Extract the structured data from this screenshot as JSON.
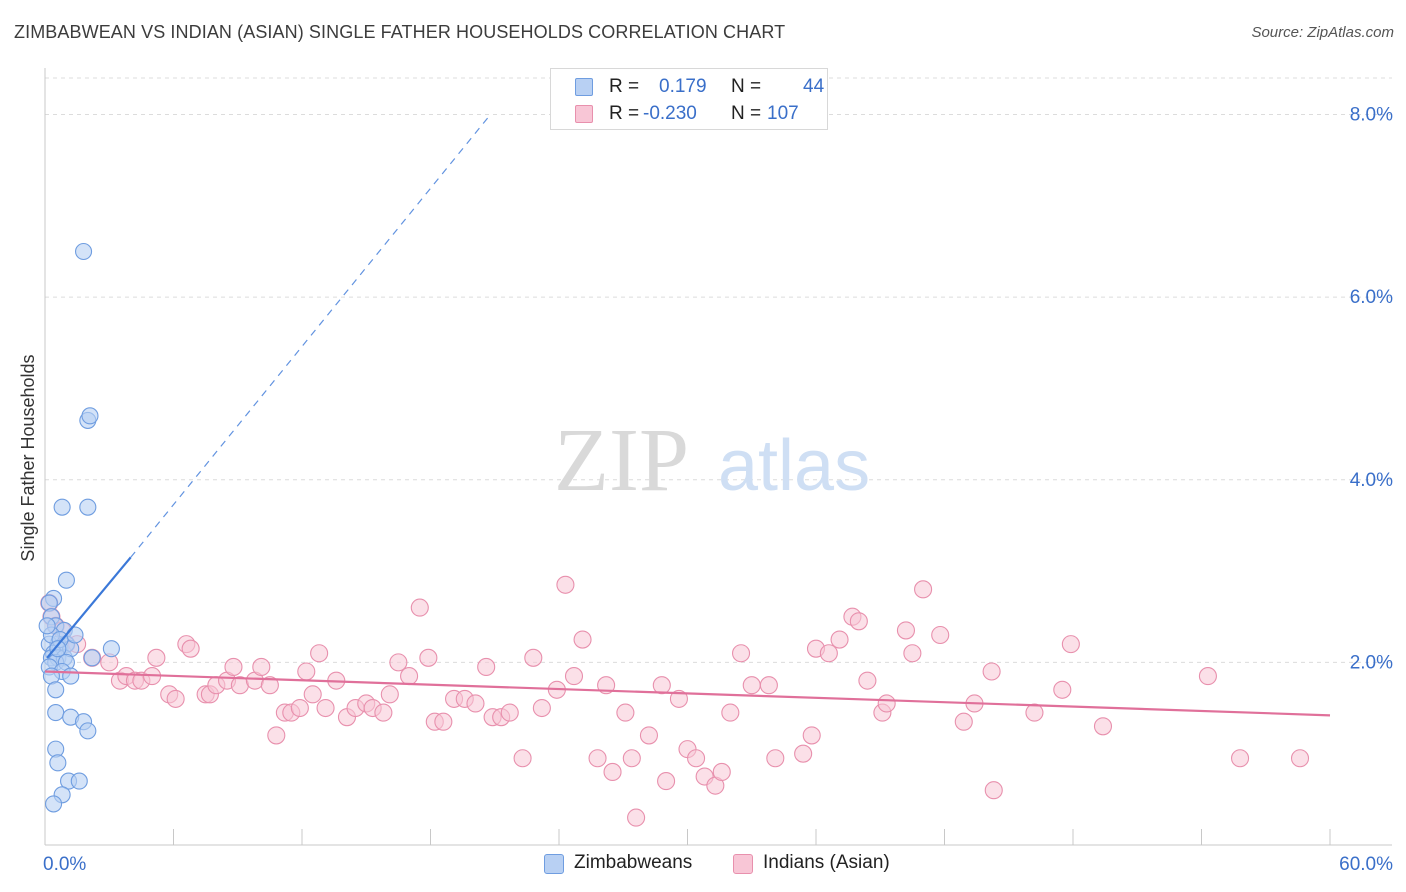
{
  "title": "ZIMBABWEAN VS INDIAN (ASIAN) SINGLE FATHER HOUSEHOLDS CORRELATION CHART",
  "source": "Source: ZipAtlas.com",
  "watermark": {
    "zip": "ZIP",
    "atlas": "atlas"
  },
  "legend": {
    "rows": [
      {
        "r_label": "R =",
        "r_value": "0.179",
        "n_label": "N =",
        "n_value": "44",
        "color": "#6f9de0",
        "fill": "#b8d0f3"
      },
      {
        "r_label": "R =",
        "r_value": "-0.230",
        "n_label": "N =",
        "n_value": "107",
        "color": "#e890ad",
        "fill": "#f8c6d6"
      }
    ]
  },
  "bottom_legend": [
    {
      "label": "Zimbabweans",
      "color": "#6f9de0",
      "fill": "#b8d0f3"
    },
    {
      "label": "Indians (Asian)",
      "color": "#e890ad",
      "fill": "#f8c6d6"
    }
  ],
  "chart_data": {
    "type": "scatter",
    "title": "ZIMBABWEAN VS INDIAN (ASIAN) SINGLE FATHER HOUSEHOLDS CORRELATION CHART",
    "xlabel": "",
    "ylabel": "Single Father Households",
    "xlim": [
      0,
      60
    ],
    "ylim": [
      0,
      8.4
    ],
    "x_tick_labels": [
      "0.0%",
      "60.0%"
    ],
    "y_ticks": [
      2.0,
      4.0,
      6.0,
      8.0
    ],
    "y_tick_labels": [
      "2.0%",
      "4.0%",
      "6.0%",
      "8.0%"
    ],
    "grid": true,
    "colors": {
      "blue": "#3b78d8",
      "pink": "#e0709a",
      "axis_text": "#3a6fc9"
    },
    "series": [
      {
        "name": "Zimbabweans",
        "color": "#6f9de0",
        "fill": "#b8d0f3",
        "trend": {
          "x_start": 0.1,
          "y_start": 2.05,
          "x_solid_end": 4.0,
          "y_solid_end": 3.15,
          "x_dash_end": 20.8,
          "y_dash_end": 8.0
        },
        "points": [
          [
            1.8,
            6.5
          ],
          [
            2.0,
            4.65
          ],
          [
            2.1,
            4.7
          ],
          [
            0.8,
            3.7
          ],
          [
            2.0,
            3.7
          ],
          [
            1.0,
            2.9
          ],
          [
            0.4,
            2.7
          ],
          [
            0.2,
            2.65
          ],
          [
            0.3,
            2.5
          ],
          [
            0.5,
            2.4
          ],
          [
            0.9,
            2.35
          ],
          [
            0.6,
            2.2
          ],
          [
            0.2,
            2.2
          ],
          [
            0.7,
            2.15
          ],
          [
            1.0,
            2.2
          ],
          [
            0.4,
            2.1
          ],
          [
            0.3,
            2.05
          ],
          [
            0.6,
            2.05
          ],
          [
            0.9,
            2.05
          ],
          [
            1.2,
            2.15
          ],
          [
            0.5,
            2.0
          ],
          [
            1.0,
            2.0
          ],
          [
            2.2,
            2.05
          ],
          [
            3.1,
            2.15
          ],
          [
            0.2,
            1.95
          ],
          [
            0.8,
            1.9
          ],
          [
            0.3,
            1.85
          ],
          [
            1.2,
            1.85
          ],
          [
            0.5,
            1.7
          ],
          [
            0.5,
            1.45
          ],
          [
            1.2,
            1.4
          ],
          [
            1.8,
            1.35
          ],
          [
            2.0,
            1.25
          ],
          [
            0.5,
            1.05
          ],
          [
            0.6,
            0.9
          ],
          [
            1.1,
            0.7
          ],
          [
            1.6,
            0.7
          ],
          [
            0.8,
            0.55
          ],
          [
            0.4,
            0.45
          ],
          [
            0.3,
            2.3
          ],
          [
            0.7,
            2.25
          ],
          [
            0.1,
            2.4
          ],
          [
            1.4,
            2.3
          ],
          [
            0.6,
            2.15
          ]
        ]
      },
      {
        "name": "Indians (Asian)",
        "color": "#e890ad",
        "fill": "#f8c6d6",
        "trend": {
          "x_start": 0.0,
          "y_start": 1.9,
          "x_end": 60.0,
          "y_end": 1.42
        },
        "points": [
          [
            0.2,
            2.65
          ],
          [
            0.3,
            2.5
          ],
          [
            0.5,
            2.4
          ],
          [
            0.8,
            2.35
          ],
          [
            1.0,
            2.2
          ],
          [
            1.5,
            2.2
          ],
          [
            2.2,
            2.05
          ],
          [
            3.0,
            2.0
          ],
          [
            3.5,
            1.8
          ],
          [
            3.8,
            1.85
          ],
          [
            4.2,
            1.8
          ],
          [
            4.5,
            1.8
          ],
          [
            5.0,
            1.85
          ],
          [
            5.2,
            2.05
          ],
          [
            5.8,
            1.65
          ],
          [
            6.1,
            1.6
          ],
          [
            6.6,
            2.2
          ],
          [
            6.8,
            2.15
          ],
          [
            7.5,
            1.65
          ],
          [
            7.7,
            1.65
          ],
          [
            8.0,
            1.75
          ],
          [
            8.5,
            1.8
          ],
          [
            8.8,
            1.95
          ],
          [
            9.1,
            1.75
          ],
          [
            9.8,
            1.8
          ],
          [
            10.1,
            1.95
          ],
          [
            10.5,
            1.75
          ],
          [
            10.8,
            1.2
          ],
          [
            11.2,
            1.45
          ],
          [
            11.5,
            1.45
          ],
          [
            11.9,
            1.5
          ],
          [
            12.2,
            1.9
          ],
          [
            12.5,
            1.65
          ],
          [
            12.8,
            2.1
          ],
          [
            13.1,
            1.5
          ],
          [
            13.6,
            1.8
          ],
          [
            14.1,
            1.4
          ],
          [
            14.5,
            1.5
          ],
          [
            15.0,
            1.55
          ],
          [
            15.3,
            1.5
          ],
          [
            15.8,
            1.45
          ],
          [
            16.1,
            1.65
          ],
          [
            16.5,
            2.0
          ],
          [
            17.0,
            1.85
          ],
          [
            17.5,
            2.6
          ],
          [
            17.9,
            2.05
          ],
          [
            18.2,
            1.35
          ],
          [
            18.6,
            1.35
          ],
          [
            19.1,
            1.6
          ],
          [
            19.6,
            1.6
          ],
          [
            20.1,
            1.55
          ],
          [
            20.6,
            1.95
          ],
          [
            20.9,
            1.4
          ],
          [
            21.3,
            1.4
          ],
          [
            21.7,
            1.45
          ],
          [
            22.3,
            0.95
          ],
          [
            22.8,
            2.05
          ],
          [
            23.2,
            1.5
          ],
          [
            23.9,
            1.7
          ],
          [
            24.3,
            2.85
          ],
          [
            24.7,
            1.85
          ],
          [
            25.1,
            2.25
          ],
          [
            25.8,
            0.95
          ],
          [
            26.2,
            1.75
          ],
          [
            26.5,
            0.8
          ],
          [
            27.1,
            1.45
          ],
          [
            27.4,
            0.95
          ],
          [
            27.6,
            0.3
          ],
          [
            28.2,
            1.2
          ],
          [
            28.8,
            1.75
          ],
          [
            29.0,
            0.7
          ],
          [
            29.6,
            1.6
          ],
          [
            30.0,
            1.05
          ],
          [
            30.4,
            0.95
          ],
          [
            30.8,
            0.75
          ],
          [
            31.3,
            0.65
          ],
          [
            31.6,
            0.8
          ],
          [
            32.0,
            1.45
          ],
          [
            32.5,
            2.1
          ],
          [
            33.0,
            1.75
          ],
          [
            33.8,
            1.75
          ],
          [
            34.1,
            0.95
          ],
          [
            35.4,
            1.0
          ],
          [
            35.8,
            1.2
          ],
          [
            36.0,
            2.15
          ],
          [
            36.6,
            2.1
          ],
          [
            37.1,
            2.25
          ],
          [
            37.7,
            2.5
          ],
          [
            38.0,
            2.45
          ],
          [
            38.4,
            1.8
          ],
          [
            39.1,
            1.45
          ],
          [
            39.3,
            1.55
          ],
          [
            40.2,
            2.35
          ],
          [
            40.5,
            2.1
          ],
          [
            41.0,
            2.8
          ],
          [
            41.8,
            2.3
          ],
          [
            42.9,
            1.35
          ],
          [
            43.4,
            1.55
          ],
          [
            44.2,
            1.9
          ],
          [
            44.3,
            0.6
          ],
          [
            46.2,
            1.45
          ],
          [
            47.5,
            1.7
          ],
          [
            47.9,
            2.2
          ],
          [
            49.4,
            1.3
          ],
          [
            54.3,
            1.85
          ],
          [
            55.8,
            0.95
          ],
          [
            58.6,
            0.95
          ]
        ]
      }
    ]
  }
}
